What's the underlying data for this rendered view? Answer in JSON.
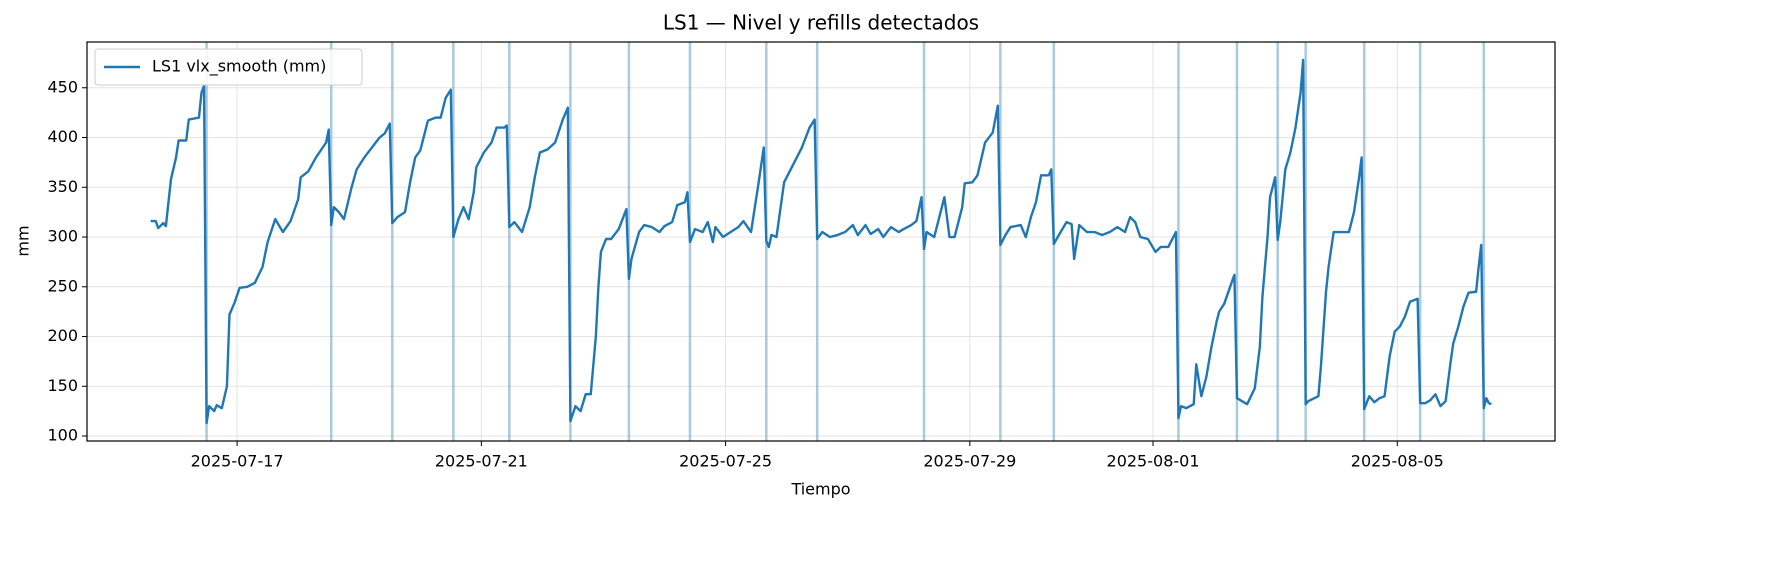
{
  "chart_data": {
    "type": "line",
    "title": "LS1 — Nivel y refills detectados",
    "xlabel": "Tiempo",
    "ylabel": "mm",
    "x": [
      "2025-07-15T14:00",
      "2025-07-15T16:00",
      "2025-07-15T17:00",
      "2025-07-15T19:00",
      "2025-07-15T20:00",
      "2025-07-15T22:00",
      "2025-07-16T00:00",
      "2025-07-16T01:00",
      "2025-07-16T04:00",
      "2025-07-16T05:00",
      "2025-07-16T09:00",
      "2025-07-16T10:00",
      "2025-07-16T11:00",
      "2025-07-16T12:00",
      "2025-07-16T13:00",
      "2025-07-16T15:00",
      "2025-07-16T16:00",
      "2025-07-16T18:00",
      "2025-07-16T20:00",
      "2025-07-16T21:00",
      "2025-07-16T23:00",
      "2025-07-17T01:00",
      "2025-07-17T04:00",
      "2025-07-17T07:00",
      "2025-07-17T10:00",
      "2025-07-17T12:00",
      "2025-07-17T15:00",
      "2025-07-17T18:00",
      "2025-07-17T21:00",
      "2025-07-18T00:00",
      "2025-07-18T01:00",
      "2025-07-18T04:00",
      "2025-07-18T07:00",
      "2025-07-18T11:00",
      "2025-07-18T12:00",
      "2025-07-18T13:00",
      "2025-07-18T14:00",
      "2025-07-18T16:00",
      "2025-07-18T18:00",
      "2025-07-18T21:00",
      "2025-07-18T23:00",
      "2025-07-19T02:00",
      "2025-07-19T05:00",
      "2025-07-19T08:00",
      "2025-07-19T10:00",
      "2025-07-19T12:00",
      "2025-07-19T13:00",
      "2025-07-19T15:00",
      "2025-07-19T18:00",
      "2025-07-19T20:00",
      "2025-07-19T22:00",
      "2025-07-20T00:00",
      "2025-07-20T03:00",
      "2025-07-20T06:00",
      "2025-07-20T08:00",
      "2025-07-20T10:00",
      "2025-07-20T12:00",
      "2025-07-20T13:00",
      "2025-07-20T15:00",
      "2025-07-20T17:00",
      "2025-07-20T19:00",
      "2025-07-20T21:00",
      "2025-07-20T22:00",
      "2025-07-21T01:00",
      "2025-07-21T04:00",
      "2025-07-21T06:00",
      "2025-07-21T09:00",
      "2025-07-21T10:00",
      "2025-07-21T11:00",
      "2025-07-21T13:00",
      "2025-07-21T16:00",
      "2025-07-21T19:00",
      "2025-07-21T21:00",
      "2025-07-21T23:00",
      "2025-07-22T02:00",
      "2025-07-22T05:00",
      "2025-07-22T08:00",
      "2025-07-22T10:00",
      "2025-07-22T11:00",
      "2025-07-22T13:00",
      "2025-07-22T15:00",
      "2025-07-22T17:00",
      "2025-07-22T19:00",
      "2025-07-22T21:00",
      "2025-07-22T22:00",
      "2025-07-22T23:00",
      "2025-07-23T01:00",
      "2025-07-23T03:00",
      "2025-07-23T06:00",
      "2025-07-23T09:00",
      "2025-07-23T10:00",
      "2025-07-23T11:00",
      "2025-07-23T14:00",
      "2025-07-23T16:00",
      "2025-07-23T19:00",
      "2025-07-23T22:00",
      "2025-07-24T00:00",
      "2025-07-24T03:00",
      "2025-07-24T05:00",
      "2025-07-24T08:00",
      "2025-07-24T09:00",
      "2025-07-24T10:00",
      "2025-07-24T12:00",
      "2025-07-24T15:00",
      "2025-07-24T17:00",
      "2025-07-24T19:00",
      "2025-07-24T20:00",
      "2025-07-24T23:00",
      "2025-07-25T02:00",
      "2025-07-25T05:00",
      "2025-07-25T07:00",
      "2025-07-25T10:00",
      "2025-07-25T13:00",
      "2025-07-25T15:00",
      "2025-07-25T16:00",
      "2025-07-25T17:00",
      "2025-07-25T18:00",
      "2025-07-25T20:00",
      "2025-07-25T23:00",
      "2025-07-26T01:00",
      "2025-07-26T04:00",
      "2025-07-26T06:00",
      "2025-07-26T09:00",
      "2025-07-26T11:00",
      "2025-07-26T12:00",
      "2025-07-26T14:00",
      "2025-07-26T17:00",
      "2025-07-26T20:00",
      "2025-07-26T23:00",
      "2025-07-27T02:00",
      "2025-07-27T04:00",
      "2025-07-27T07:00",
      "2025-07-27T09:00",
      "2025-07-27T12:00",
      "2025-07-27T14:00",
      "2025-07-27T17:00",
      "2025-07-27T20:00",
      "2025-07-27T22:00",
      "2025-07-28T01:00",
      "2025-07-28T03:00",
      "2025-07-28T05:00",
      "2025-07-28T06:00",
      "2025-07-28T07:00",
      "2025-07-28T10:00",
      "2025-07-28T12:00",
      "2025-07-28T14:00",
      "2025-07-28T16:00",
      "2025-07-28T18:00",
      "2025-07-28T21:00",
      "2025-07-28T22:00",
      "2025-07-29T01:00",
      "2025-07-29T03:00",
      "2025-07-29T06:00",
      "2025-07-29T09:00",
      "2025-07-29T11:00",
      "2025-07-29T12:00",
      "2025-07-29T14:00",
      "2025-07-29T16:00",
      "2025-07-29T20:00",
      "2025-07-29T22:00",
      "2025-07-30T00:00",
      "2025-07-30T02:00",
      "2025-07-30T04:00",
      "2025-07-30T07:00",
      "2025-07-30T08:00",
      "2025-07-30T09:00",
      "2025-07-30T11:00",
      "2025-07-30T14:00",
      "2025-07-30T16:00",
      "2025-07-30T17:00",
      "2025-07-30T19:00",
      "2025-07-30T22:00",
      "2025-07-31T01:00",
      "2025-07-31T04:00",
      "2025-07-31T07:00",
      "2025-07-31T10:00",
      "2025-07-31T13:00",
      "2025-07-31T15:00",
      "2025-07-31T17:00",
      "2025-07-31T19:00",
      "2025-07-31T22:00",
      "2025-08-01T01:00",
      "2025-08-01T03:00",
      "2025-08-01T06:00",
      "2025-08-01T09:00",
      "2025-08-01T10:00",
      "2025-08-01T11:00",
      "2025-08-01T13:00",
      "2025-08-01T16:00",
      "2025-08-01T17:00",
      "2025-08-01T19:00",
      "2025-08-01T21:00",
      "2025-08-01T23:00",
      "2025-08-02T01:00",
      "2025-08-02T02:00",
      "2025-08-02T04:00",
      "2025-08-02T07:00",
      "2025-08-02T08:00",
      "2025-08-02T09:00",
      "2025-08-02T11:00",
      "2025-08-02T13:00",
      "2025-08-02T16:00",
      "2025-08-02T18:00",
      "2025-08-02T19:00",
      "2025-08-02T21:00",
      "2025-08-02T22:00",
      "2025-08-03T00:00",
      "2025-08-03T01:00",
      "2025-08-03T02:00",
      "2025-08-03T04:00",
      "2025-08-03T06:00",
      "2025-08-03T08:00",
      "2025-08-03T10:00",
      "2025-08-03T11:00",
      "2025-08-03T12:00",
      "2025-08-03T13:00",
      "2025-08-03T17:00",
      "2025-08-03T18:00",
      "2025-08-03T20:00",
      "2025-08-03T21:00",
      "2025-08-03T23:00",
      "2025-08-04T02:00",
      "2025-08-04T05:00",
      "2025-08-04T07:00",
      "2025-08-04T09:00",
      "2025-08-04T10:00",
      "2025-08-04T11:00",
      "2025-08-04T13:00",
      "2025-08-04T15:00",
      "2025-08-04T17:00",
      "2025-08-04T19:00",
      "2025-08-04T21:00",
      "2025-08-04T23:00",
      "2025-08-05T01:00",
      "2025-08-05T03:00",
      "2025-08-05T05:00",
      "2025-08-05T08:00",
      "2025-08-05T09:00",
      "2025-08-05T11:00",
      "2025-08-05T13:00",
      "2025-08-05T15:00",
      "2025-08-05T17:00",
      "2025-08-05T19:00",
      "2025-08-05T21:00",
      "2025-08-05T22:00",
      "2025-08-06T00:00",
      "2025-08-06T02:00",
      "2025-08-06T04:00",
      "2025-08-06T07:00",
      "2025-08-06T08:00",
      "2025-08-06T09:00",
      "2025-08-06T10:00",
      "2025-08-06T11:00",
      "2025-08-06T12:00",
      "2025-08-06T13:00"
    ],
    "series": [
      {
        "name": "LS1 vlx_smooth (mm)",
        "color": "#1f77b4",
        "values": [
          316,
          316,
          309,
          314,
          311,
          358,
          380,
          397,
          397,
          418,
          420,
          445,
          452,
          113,
          130,
          125,
          131,
          128,
          150,
          222,
          234,
          249,
          250,
          254,
          270,
          295,
          318,
          305,
          316,
          338,
          360,
          366,
          380,
          395,
          408,
          312,
          330,
          325,
          318,
          350,
          368,
          380,
          390,
          400,
          404,
          414,
          314,
          320,
          325,
          355,
          380,
          387,
          417,
          420,
          420,
          440,
          448,
          300,
          318,
          330,
          318,
          345,
          370,
          385,
          395,
          410,
          410,
          412,
          310,
          315,
          305,
          330,
          360,
          385,
          388,
          395,
          418,
          430,
          115,
          130,
          125,
          142,
          142,
          200,
          250,
          285,
          298,
          298,
          308,
          328,
          258,
          278,
          305,
          312,
          310,
          305,
          311,
          315,
          332,
          335,
          345,
          295,
          308,
          305,
          315,
          295,
          310,
          300,
          305,
          310,
          316,
          305,
          355,
          390,
          296,
          290,
          302,
          300,
          355,
          365,
          380,
          390,
          410,
          418,
          298,
          305,
          300,
          302,
          305,
          312,
          302,
          312,
          303,
          308,
          300,
          310,
          305,
          308,
          312,
          316,
          340,
          288,
          305,
          300,
          320,
          340,
          300,
          300,
          330,
          354,
          355,
          362,
          395,
          405,
          432,
          292,
          302,
          310,
          312,
          300,
          320,
          335,
          362,
          362,
          368,
          293,
          302,
          315,
          313,
          278,
          312,
          305,
          305,
          302,
          305,
          310,
          305,
          320,
          315,
          300,
          298,
          285,
          290,
          290,
          305,
          118,
          130,
          128,
          132,
          172,
          140,
          160,
          190,
          215,
          225,
          233,
          255,
          262,
          138,
          135,
          132,
          148,
          190,
          240,
          300,
          340,
          360,
          297,
          315,
          368,
          385,
          410,
          445,
          478,
          132,
          135,
          140,
          170,
          245,
          270,
          305,
          305,
          305,
          325,
          360,
          380,
          127,
          140,
          134,
          138,
          140,
          180,
          205,
          210,
          220,
          235,
          238,
          133,
          133,
          136,
          142,
          130,
          135,
          175,
          193,
          210,
          230,
          244,
          245,
          270,
          292,
          128,
          138,
          133,
          132
        ]
      }
    ],
    "refills": [
      "2025-07-16T12:00",
      "2025-07-18T13:00",
      "2025-07-19T13:00",
      "2025-07-20T13:00",
      "2025-07-21T11:00",
      "2025-07-22T11:00",
      "2025-07-23T10:00",
      "2025-07-24T10:00",
      "2025-07-25T16:00",
      "2025-07-26T12:00",
      "2025-07-28T06:00",
      "2025-07-29T12:00",
      "2025-07-30T09:00",
      "2025-08-01T10:00",
      "2025-08-02T09:00",
      "2025-08-03T01:00",
      "2025-08-03T12:00",
      "2025-08-04T11:00",
      "2025-08-05T09:00",
      "2025-08-06T10:00"
    ],
    "refill_color": "#6fa6c9",
    "xlim": [
      "2025-07-14T13:00",
      "2025-08-07T14:00"
    ],
    "xticks": [
      "2025-07-17",
      "2025-07-21",
      "2025-07-25",
      "2025-07-29",
      "2025-08-01",
      "2025-08-05"
    ],
    "ylim": [
      95,
      496
    ],
    "yticks": [
      100,
      150,
      200,
      250,
      300,
      350,
      400,
      450
    ],
    "grid": true,
    "legend": "upper left"
  }
}
